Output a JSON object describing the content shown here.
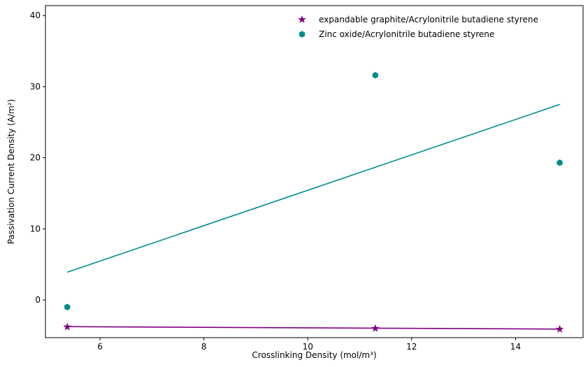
{
  "chart_data": {
    "type": "scatter",
    "title": "",
    "xlabel": "Crosslinking Density (mol/m³)",
    "ylabel": "Passivation Current Density (A/m²)",
    "xlim": [
      4.95,
      15.3
    ],
    "ylim": [
      -5.3,
      41.4
    ],
    "xticks": [
      6,
      8,
      10,
      12,
      14
    ],
    "yticks": [
      0,
      10,
      20,
      30,
      40
    ],
    "grid": false,
    "legend_position": "top-right",
    "series": [
      {
        "name": "expandable graphite/Acrylonitrile butadiene styrene",
        "marker": "star",
        "color": "#800080",
        "points": [
          {
            "x": 5.37,
            "y": -3.8
          },
          {
            "x": 11.3,
            "y": -4.0
          },
          {
            "x": 14.85,
            "y": -4.1
          }
        ],
        "trendline": {
          "x": [
            5.37,
            14.85
          ],
          "y": [
            -3.75,
            -4.1
          ]
        }
      },
      {
        "name": "Zinc oxide/Acrylonitrile butadiene styrene",
        "marker": "hexagon",
        "color": "#008b8b",
        "points": [
          {
            "x": 5.37,
            "y": -1.0
          },
          {
            "x": 11.3,
            "y": 31.6
          },
          {
            "x": 14.85,
            "y": 19.3
          }
        ],
        "trendline": {
          "x": [
            5.37,
            14.85
          ],
          "y": [
            3.9,
            27.5
          ]
        }
      }
    ]
  }
}
